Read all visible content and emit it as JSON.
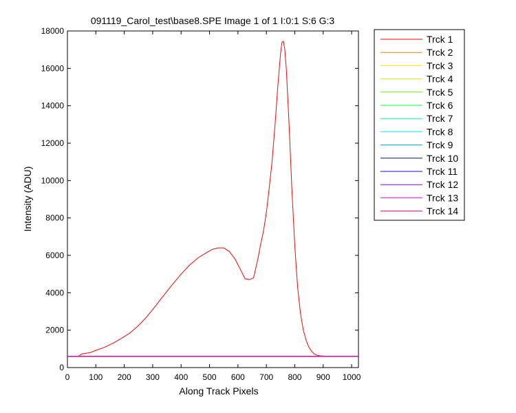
{
  "chart_data": {
    "type": "line",
    "title": "091119_Carol_test\\base8.SPE  Image 1 of 1  I:0:1  S:6  G:3",
    "xlabel": "Along Track Pixels",
    "ylabel": "Intensity (ADU)",
    "xlim": [
      0,
      1024
    ],
    "ylim": [
      0,
      18000
    ],
    "xticks": [
      0,
      100,
      200,
      300,
      400,
      500,
      600,
      700,
      800,
      900,
      1000
    ],
    "yticks": [
      0,
      2000,
      4000,
      6000,
      8000,
      10000,
      12000,
      14000,
      16000,
      18000
    ],
    "grid": false,
    "legend_position": "outside-right",
    "series": [
      {
        "name": "Trck 1",
        "color": "#ff0000",
        "x": [
          0,
          40,
          50,
          80,
          100,
          130,
          160,
          190,
          220,
          250,
          280,
          310,
          340,
          370,
          400,
          430,
          460,
          490,
          510,
          530,
          550,
          570,
          590,
          610,
          625,
          640,
          655,
          670,
          680,
          690,
          700,
          710,
          720,
          730,
          740,
          750,
          755,
          760,
          765,
          770,
          780,
          790,
          800,
          810,
          820,
          830,
          840,
          850,
          860,
          870,
          880,
          890,
          900,
          950,
          1000,
          1024
        ],
        "y": [
          600,
          610,
          730,
          800,
          920,
          1080,
          1300,
          1560,
          1850,
          2250,
          2730,
          3300,
          3880,
          4450,
          5000,
          5480,
          5870,
          6150,
          6320,
          6400,
          6400,
          6200,
          5800,
          5200,
          4750,
          4700,
          4800,
          5800,
          6600,
          7300,
          8300,
          9600,
          11000,
          12900,
          15000,
          16800,
          17400,
          17450,
          17000,
          16000,
          13000,
          9500,
          6500,
          4300,
          2900,
          2000,
          1450,
          1080,
          850,
          710,
          650,
          625,
          610,
          600,
          600,
          600
        ]
      },
      {
        "name": "Trck 2",
        "color": "#ff7f00",
        "x": [
          0,
          1024
        ],
        "y": [
          600,
          600
        ]
      },
      {
        "name": "Trck 3",
        "color": "#ffdf00",
        "x": [
          0,
          1024
        ],
        "y": [
          600,
          600
        ]
      },
      {
        "name": "Trck 4",
        "color": "#bfff00",
        "x": [
          0,
          1024
        ],
        "y": [
          600,
          600
        ]
      },
      {
        "name": "Trck 5",
        "color": "#5fff00",
        "x": [
          0,
          1024
        ],
        "y": [
          600,
          600
        ]
      },
      {
        "name": "Trck 6",
        "color": "#00ff3f",
        "x": [
          0,
          1024
        ],
        "y": [
          600,
          600
        ]
      },
      {
        "name": "Trck 7",
        "color": "#00ff9f",
        "x": [
          0,
          1024
        ],
        "y": [
          600,
          600
        ]
      },
      {
        "name": "Trck 8",
        "color": "#00ffff",
        "x": [
          0,
          1024
        ],
        "y": [
          600,
          600
        ]
      },
      {
        "name": "Trck 9",
        "color": "#009fff",
        "x": [
          0,
          1024
        ],
        "y": [
          600,
          600
        ]
      },
      {
        "name": "Trck 10",
        "color": "#001f7f",
        "x": [
          0,
          1024
        ],
        "y": [
          600,
          600
        ]
      },
      {
        "name": "Trck 11",
        "color": "#2000ff",
        "x": [
          0,
          1024
        ],
        "y": [
          600,
          600
        ]
      },
      {
        "name": "Trck 12",
        "color": "#8f00ff",
        "x": [
          0,
          1024
        ],
        "y": [
          600,
          600
        ]
      },
      {
        "name": "Trck 13",
        "color": "#ff00ff",
        "x": [
          0,
          1024
        ],
        "y": [
          600,
          600
        ]
      },
      {
        "name": "Trck 14",
        "color": "#ff007f",
        "x": [
          0,
          1024
        ],
        "y": [
          600,
          600
        ]
      }
    ]
  }
}
